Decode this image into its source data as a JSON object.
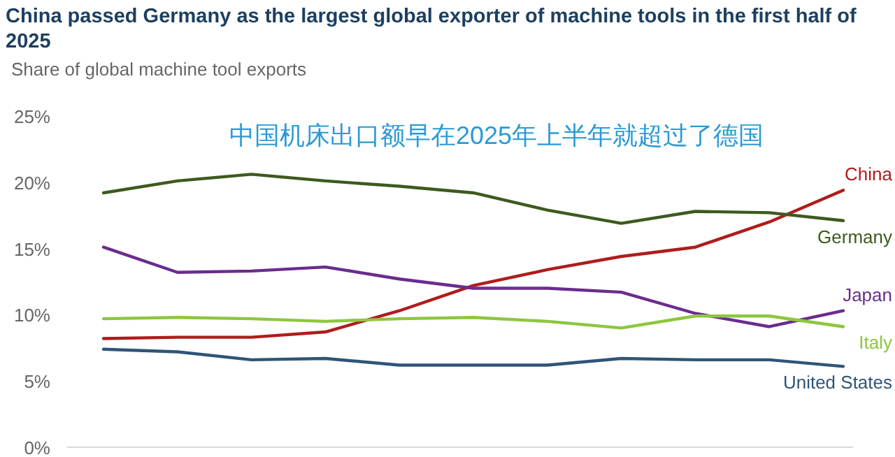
{
  "chart_data": {
    "type": "line",
    "title": "China passed Germany as the largest global exporter of machine tools in the first half of 2025",
    "subtitle": "Share of global machine tool exports",
    "categories": [
      null,
      null,
      null,
      null,
      null,
      null,
      null,
      null,
      null,
      null,
      null
    ],
    "series": [
      {
        "name": "China",
        "color": "#b01c1c",
        "values": [
          8.2,
          8.3,
          8.3,
          8.7,
          10.3,
          12.2,
          13.4,
          14.4,
          15.1,
          17.0,
          19.4
        ]
      },
      {
        "name": "Germany",
        "color": "#3d5a1e",
        "values": [
          19.2,
          20.1,
          20.6,
          20.1,
          19.7,
          19.2,
          17.9,
          16.9,
          17.8,
          17.7,
          17.1
        ]
      },
      {
        "name": "Japan",
        "color": "#6a2c8e",
        "values": [
          15.1,
          13.2,
          13.3,
          13.6,
          12.7,
          12.0,
          12.0,
          11.7,
          10.1,
          9.1,
          10.3
        ]
      },
      {
        "name": "Italy",
        "color": "#8dc63f",
        "values": [
          9.7,
          9.8,
          9.7,
          9.5,
          9.7,
          9.8,
          9.5,
          9.0,
          9.9,
          9.9,
          9.1
        ]
      },
      {
        "name": "United States",
        "color": "#2f5577",
        "values": [
          7.4,
          7.2,
          6.6,
          6.7,
          6.2,
          6.2,
          6.2,
          6.7,
          6.6,
          6.6,
          6.1
        ]
      }
    ],
    "ylim": [
      0,
      25
    ],
    "yticks": [
      {
        "value": 0,
        "label": "0%"
      },
      {
        "value": 5,
        "label": "5%"
      },
      {
        "value": 10,
        "label": "10%"
      },
      {
        "value": 15,
        "label": "15%"
      },
      {
        "value": 20,
        "label": "20%"
      },
      {
        "value": 25,
        "label": "25%"
      }
    ],
    "annotations": [
      "中国机床出口额早在2025年上半年就超过了德国"
    ],
    "line_style": "solid"
  }
}
